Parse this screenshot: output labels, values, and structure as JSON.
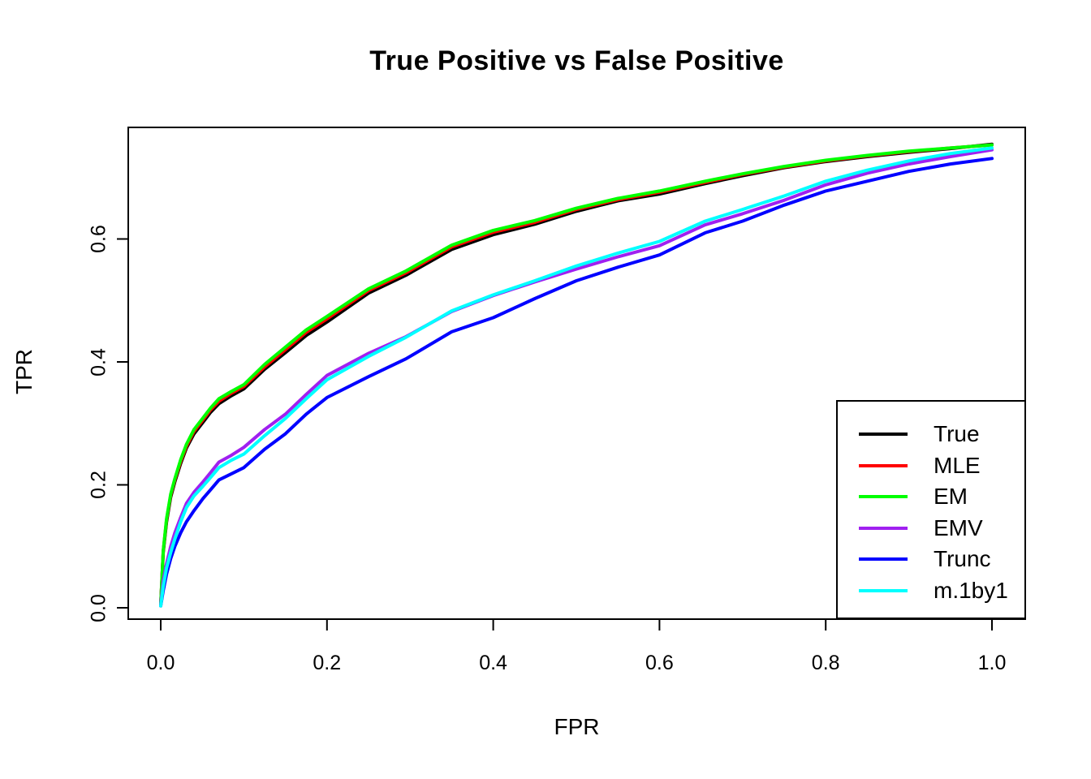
{
  "title": "True Positive vs False Positive",
  "chart_data": {
    "type": "line",
    "title": "True Positive vs False Positive",
    "xlabel": "FPR",
    "ylabel": "TPR",
    "xlim": [
      -0.04,
      1.04
    ],
    "ylim": [
      -0.018,
      0.781
    ],
    "grid": false,
    "legend_position": "bottom-right",
    "x_ticks": [
      0.0,
      0.2,
      0.4,
      0.6,
      0.8,
      1.0
    ],
    "x_tick_labels": [
      "0.0",
      "0.2",
      "0.4",
      "0.6",
      "0.8",
      "1.0"
    ],
    "y_ticks": [
      0.0,
      0.2,
      0.4,
      0.6
    ],
    "y_tick_labels": [
      "0.0",
      "0.2",
      "0.4",
      "0.6"
    ],
    "axis_color": "#000000",
    "background_color": "#ffffff",
    "x": [
      0,
      0.003,
      0.007,
      0.012,
      0.017,
      0.024,
      0.031,
      0.04,
      0.051,
      0.06,
      0.07,
      0.085,
      0.1,
      0.125,
      0.15,
      0.175,
      0.2,
      0.25,
      0.295,
      0.35,
      0.4,
      0.45,
      0.5,
      0.55,
      0.6,
      0.655,
      0.7,
      0.75,
      0.8,
      0.85,
      0.9,
      0.95,
      1.0
    ],
    "series": [
      {
        "name": "True",
        "color": "#000000",
        "y": [
          0.005,
          0.09,
          0.14,
          0.18,
          0.205,
          0.235,
          0.26,
          0.283,
          0.302,
          0.318,
          0.332,
          0.345,
          0.356,
          0.388,
          0.415,
          0.443,
          0.465,
          0.512,
          0.541,
          0.583,
          0.607,
          0.624,
          0.645,
          0.662,
          0.673,
          0.69,
          0.703,
          0.716,
          0.726,
          0.734,
          0.741,
          0.747,
          0.754
        ]
      },
      {
        "name": "MLE",
        "color": "#ff0000",
        "y": [
          0.005,
          0.092,
          0.143,
          0.183,
          0.208,
          0.238,
          0.263,
          0.287,
          0.306,
          0.322,
          0.336,
          0.349,
          0.36,
          0.392,
          0.42,
          0.448,
          0.47,
          0.516,
          0.545,
          0.587,
          0.611,
          0.627,
          0.648,
          0.664,
          0.676,
          0.692,
          0.705,
          0.717,
          0.727,
          0.735,
          0.742,
          0.748,
          0.753
        ]
      },
      {
        "name": "EM",
        "color": "#00ff00",
        "y": [
          0.005,
          0.093,
          0.145,
          0.185,
          0.21,
          0.241,
          0.266,
          0.29,
          0.309,
          0.325,
          0.34,
          0.352,
          0.363,
          0.396,
          0.424,
          0.452,
          0.474,
          0.519,
          0.548,
          0.59,
          0.614,
          0.63,
          0.65,
          0.666,
          0.678,
          0.694,
          0.706,
          0.718,
          0.728,
          0.736,
          0.743,
          0.748,
          0.753
        ]
      },
      {
        "name": "EMV",
        "color": "#a020f0",
        "y": [
          0.005,
          0.045,
          0.072,
          0.1,
          0.122,
          0.147,
          0.17,
          0.188,
          0.205,
          0.22,
          0.237,
          0.248,
          0.261,
          0.29,
          0.315,
          0.347,
          0.378,
          0.414,
          0.441,
          0.482,
          0.508,
          0.53,
          0.551,
          0.571,
          0.589,
          0.623,
          0.641,
          0.663,
          0.688,
          0.707,
          0.722,
          0.734,
          0.745
        ]
      },
      {
        "name": "Trunc",
        "color": "#0000ff",
        "y": [
          0.003,
          0.028,
          0.055,
          0.08,
          0.1,
          0.122,
          0.14,
          0.158,
          0.178,
          0.192,
          0.208,
          0.218,
          0.228,
          0.258,
          0.283,
          0.315,
          0.342,
          0.376,
          0.405,
          0.449,
          0.472,
          0.503,
          0.532,
          0.554,
          0.574,
          0.61,
          0.629,
          0.655,
          0.678,
          0.694,
          0.71,
          0.722,
          0.731
        ]
      },
      {
        "name": "m.1by1",
        "color": "#00ffff",
        "y": [
          0.003,
          0.035,
          0.065,
          0.09,
          0.112,
          0.14,
          0.163,
          0.182,
          0.198,
          0.212,
          0.228,
          0.24,
          0.25,
          0.28,
          0.308,
          0.34,
          0.371,
          0.409,
          0.44,
          0.483,
          0.509,
          0.532,
          0.556,
          0.577,
          0.596,
          0.629,
          0.648,
          0.67,
          0.694,
          0.712,
          0.727,
          0.739,
          0.748
        ]
      }
    ]
  }
}
